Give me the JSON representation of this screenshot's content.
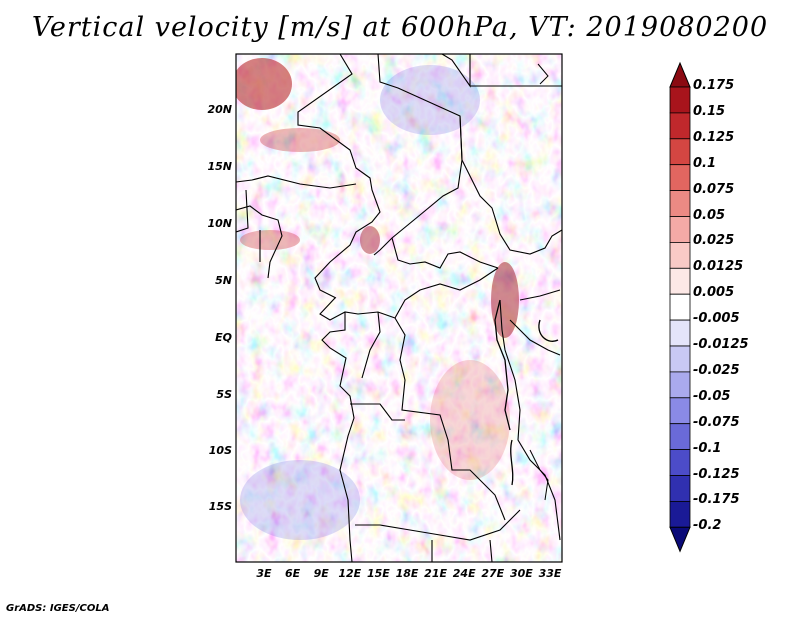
{
  "title": "Vertical velocity [m/s] at 600hPa, VT: 2019080200",
  "credit": "GrADS: IGES/COLA",
  "lat_labels": [
    "20N",
    "15N",
    "10N",
    "5N",
    "EQ",
    "5S",
    "10S",
    "15S"
  ],
  "lon_labels": [
    "3E",
    "6E",
    "9E",
    "12E",
    "15E",
    "18E",
    "21E",
    "24E",
    "27E",
    "30E",
    "33E"
  ],
  "colorbar": {
    "labels": [
      "0.175",
      "0.15",
      "0.125",
      "0.1",
      "0.075",
      "0.05",
      "0.025",
      "0.0125",
      "0.005",
      "-0.005",
      "-0.0125",
      "-0.025",
      "-0.05",
      "-0.075",
      "-0.1",
      "-0.125",
      "-0.175",
      "-0.2"
    ],
    "colors": [
      "#8b0a12",
      "#a8141c",
      "#c0282c",
      "#d44642",
      "#e26660",
      "#ec8a84",
      "#f4aaa6",
      "#f9cac6",
      "#fde8e6",
      "#ffffff",
      "#e4e4fa",
      "#c8c8f4",
      "#aaaaee",
      "#8a8ae6",
      "#6a6ad8",
      "#4c4cc8",
      "#3030b0",
      "#1a1a96",
      "#0a0a78"
    ]
  },
  "colors": {
    "positive": "#d84848",
    "negative": "#5a5ae0",
    "neutral": "#ffffff",
    "border": "#000000"
  }
}
